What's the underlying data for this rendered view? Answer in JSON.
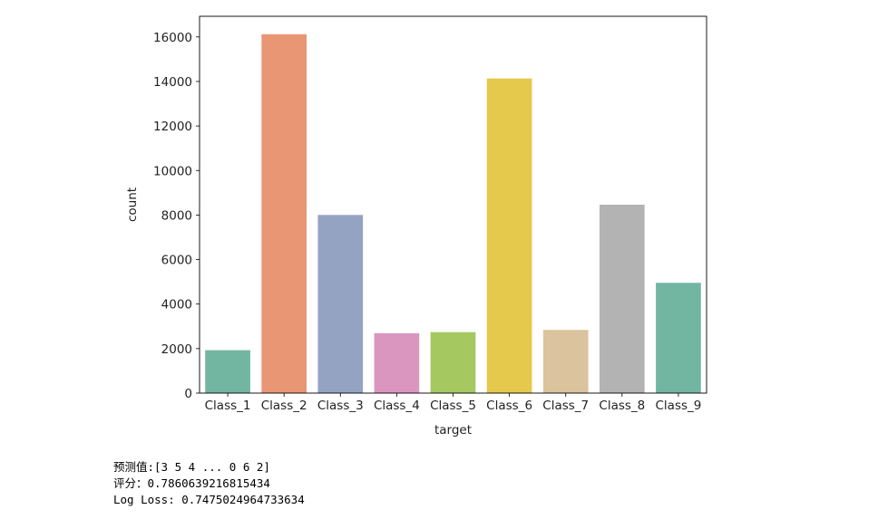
{
  "chart_data": {
    "type": "bar",
    "title": "",
    "xlabel": "target",
    "ylabel": "count",
    "categories": [
      "Class_1",
      "Class_2",
      "Class_3",
      "Class_4",
      "Class_5",
      "Class_6",
      "Class_7",
      "Class_8",
      "Class_9"
    ],
    "values": [
      1929,
      16122,
      8004,
      2691,
      2739,
      14135,
      2839,
      8464,
      4955
    ],
    "colors": [
      "#72b6a1",
      "#e99675",
      "#95a3c3",
      "#db96c0",
      "#a5c861",
      "#e5c94c",
      "#dac39d",
      "#b3b3b3",
      "#72b6a1"
    ],
    "yticks": [
      0,
      2000,
      4000,
      6000,
      8000,
      10000,
      12000,
      14000,
      16000
    ],
    "ylim": [
      0,
      16928
    ],
    "grid": false
  },
  "output": {
    "line1": "预测值:[3 5 4 ... 0 6 2]",
    "line2": "评分：0.7860639216815434",
    "line3": "Log Loss: 0.7475024964733634"
  }
}
